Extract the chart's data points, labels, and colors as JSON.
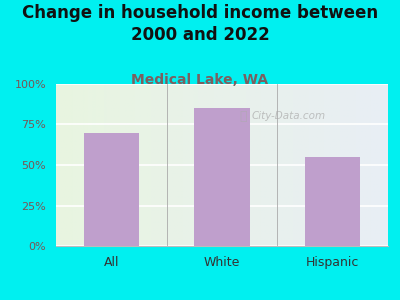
{
  "title": "Change in household income between\n2000 and 2022",
  "subtitle": "Medical Lake, WA",
  "categories": [
    "All",
    "White",
    "Hispanic"
  ],
  "values": [
    70,
    85,
    55
  ],
  "bar_color": "#bf9fcc",
  "title_fontsize": 12,
  "title_color": "#111111",
  "subtitle_fontsize": 10,
  "subtitle_color": "#7a6060",
  "tick_label_color": "#7a5555",
  "background_outer": "#00f0f0",
  "ylim": [
    0,
    100
  ],
  "yticks": [
    0,
    25,
    50,
    75,
    100
  ],
  "ytick_labels": [
    "0%",
    "25%",
    "50%",
    "75%",
    "100%"
  ],
  "watermark": "City-Data.com",
  "plot_bg_left": "#e8f5e0",
  "plot_bg_right": "#e8eef5"
}
